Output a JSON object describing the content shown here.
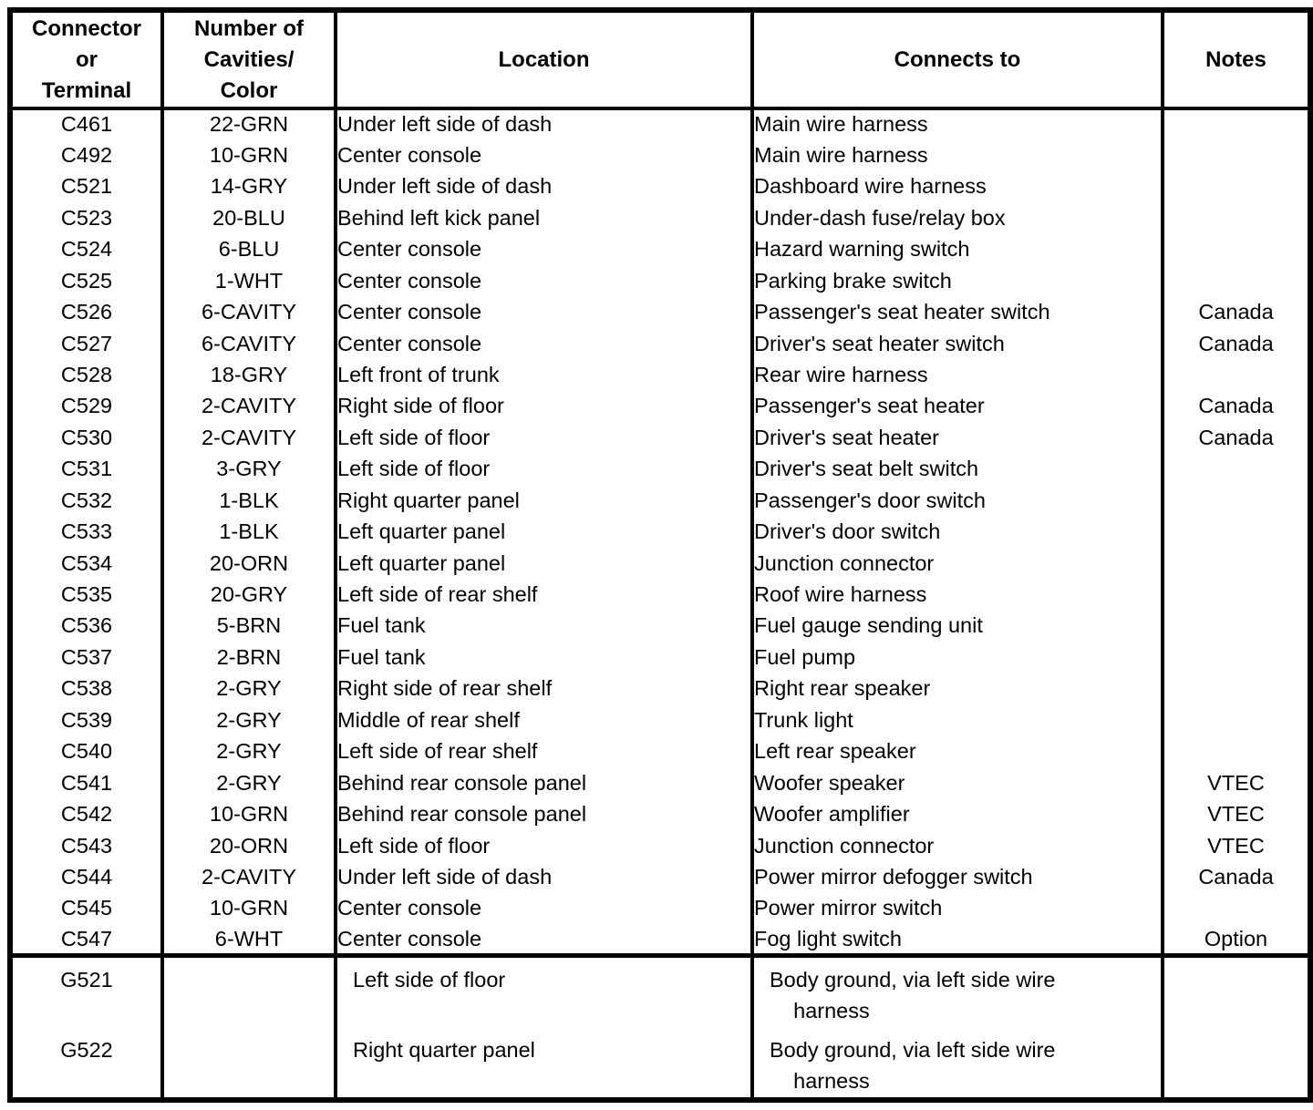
{
  "table": {
    "headers": {
      "connector": "Connector\nor\nTerminal",
      "cavities": "Number of\nCavities/\nColor",
      "location": "Location",
      "connects": "Connects to",
      "notes": "Notes"
    },
    "rows": [
      {
        "connector": "C461",
        "cavities": "22-GRN",
        "location": "Under left side of dash",
        "connects": "Main wire harness",
        "notes": ""
      },
      {
        "connector": "C492",
        "cavities": "10-GRN",
        "location": "Center console",
        "connects": "Main wire harness",
        "notes": ""
      },
      {
        "connector": "C521",
        "cavities": "14-GRY",
        "location": "Under left side of dash",
        "connects": "Dashboard wire harness",
        "notes": ""
      },
      {
        "connector": "C523",
        "cavities": "20-BLU",
        "location": "Behind left kick panel",
        "connects": "Under-dash fuse/relay box",
        "notes": ""
      },
      {
        "connector": "C524",
        "cavities": "6-BLU",
        "location": "Center console",
        "connects": "Hazard warning switch",
        "notes": ""
      },
      {
        "connector": "C525",
        "cavities": "1-WHT",
        "location": "Center console",
        "connects": "Parking brake switch",
        "notes": ""
      },
      {
        "connector": "C526",
        "cavities": "6-CAVITY",
        "location": "Center console",
        "connects": "Passenger's seat heater switch",
        "notes": "Canada"
      },
      {
        "connector": "C527",
        "cavities": "6-CAVITY",
        "location": "Center console",
        "connects": "Driver's seat heater switch",
        "notes": "Canada"
      },
      {
        "connector": "C528",
        "cavities": "18-GRY",
        "location": "Left front of trunk",
        "connects": "Rear wire harness",
        "notes": ""
      },
      {
        "connector": "C529",
        "cavities": "2-CAVITY",
        "location": "Right side of floor",
        "connects": "Passenger's seat heater",
        "notes": "Canada"
      },
      {
        "connector": "C530",
        "cavities": "2-CAVITY",
        "location": "Left side of floor",
        "connects": "Driver's seat heater",
        "notes": "Canada"
      },
      {
        "connector": "C531",
        "cavities": "3-GRY",
        "location": "Left side of floor",
        "connects": "Driver's seat belt switch",
        "notes": ""
      },
      {
        "connector": "C532",
        "cavities": "1-BLK",
        "location": "Right quarter panel",
        "connects": "Passenger's door switch",
        "notes": ""
      },
      {
        "connector": "C533",
        "cavities": "1-BLK",
        "location": "Left quarter panel",
        "connects": "Driver's door switch",
        "notes": ""
      },
      {
        "connector": "C534",
        "cavities": "20-ORN",
        "location": "Left quarter panel",
        "connects": "Junction connector",
        "notes": ""
      },
      {
        "connector": "C535",
        "cavities": "20-GRY",
        "location": "Left side of rear shelf",
        "connects": "Roof wire harness",
        "notes": ""
      },
      {
        "connector": "C536",
        "cavities": "5-BRN",
        "location": "Fuel tank",
        "connects": "Fuel gauge sending unit",
        "notes": ""
      },
      {
        "connector": "C537",
        "cavities": "2-BRN",
        "location": "Fuel tank",
        "connects": "Fuel pump",
        "notes": ""
      },
      {
        "connector": "C538",
        "cavities": "2-GRY",
        "location": "Right side of rear shelf",
        "connects": "Right rear speaker",
        "notes": ""
      },
      {
        "connector": "C539",
        "cavities": "2-GRY",
        "location": "Middle of rear shelf",
        "connects": "Trunk light",
        "notes": ""
      },
      {
        "connector": "C540",
        "cavities": "2-GRY",
        "location": "Left side of rear shelf",
        "connects": "Left rear speaker",
        "notes": ""
      },
      {
        "connector": "C541",
        "cavities": "2-GRY",
        "location": "Behind rear console panel",
        "connects": "Woofer speaker",
        "notes": "VTEC"
      },
      {
        "connector": "C542",
        "cavities": "10-GRN",
        "location": "Behind rear console panel",
        "connects": "Woofer amplifier",
        "notes": "VTEC"
      },
      {
        "connector": "C543",
        "cavities": "20-ORN",
        "location": "Left side of floor",
        "connects": "Junction connector",
        "notes": "VTEC"
      },
      {
        "connector": "C544",
        "cavities": "2-CAVITY",
        "location": "Under left side of dash",
        "connects": "Power mirror defogger switch",
        "notes": "Canada"
      },
      {
        "connector": "C545",
        "cavities": "10-GRN",
        "location": "Center console",
        "connects": "Power mirror switch",
        "notes": ""
      },
      {
        "connector": "C547",
        "cavities": "6-WHT",
        "location": "Center console",
        "connects": "Fog light switch",
        "notes": "Option"
      }
    ],
    "ground_rows": [
      {
        "connector": "G521",
        "cavities": "",
        "location": "Left side of floor",
        "connects": "Body ground, via left side wire\n    harness",
        "notes": ""
      },
      {
        "connector": "G522",
        "cavities": "",
        "location": "Right quarter panel",
        "connects": "Body ground, via left side wire\n    harness",
        "notes": ""
      }
    ]
  }
}
